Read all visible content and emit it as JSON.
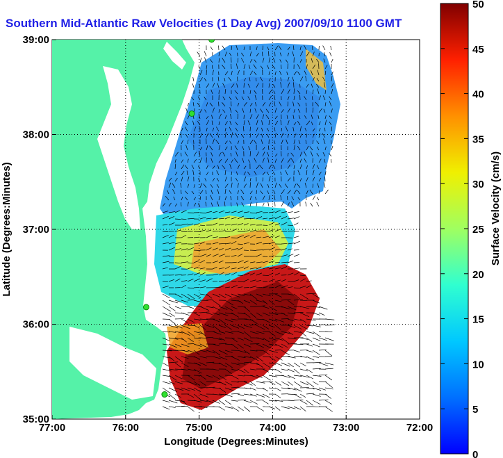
{
  "title": "Southern Mid-Atlantic Raw Velocities (1 Day Avg) 2007/09/10 1100 GMT",
  "map": {
    "x_label": "Longitude (Degrees:Minutes)",
    "y_label": "Latitude (Degrees:Minutes)",
    "x_ticks": [
      "77:00",
      "76:00",
      "75:00",
      "74:00",
      "73:00",
      "72:00"
    ],
    "y_ticks": [
      "39:00",
      "38:00",
      "37:00",
      "36:00",
      "35:00"
    ],
    "lon_range": [
      -77,
      -72
    ],
    "lat_range": [
      35,
      39
    ],
    "grid": true,
    "land_color": "#55f2a8",
    "ocean_color": "#ffffff"
  },
  "colorbar": {
    "label": "Surface Velocity (cm/s)",
    "ticks": [
      "50",
      "45",
      "40",
      "35",
      "30",
      "25",
      "20",
      "15",
      "10",
      "5",
      "0"
    ],
    "range": [
      0,
      50
    ],
    "colormap": "jet"
  },
  "chart_data": {
    "type": "heatmap",
    "title": "Southern Mid-Atlantic Raw Velocities (1 Day Avg) 2007/09/10 1100 GMT",
    "xlabel": "Longitude (Degrees:Minutes)",
    "ylabel": "Latitude (Degrees:Minutes)",
    "xlim": [
      -77,
      -72
    ],
    "ylim": [
      35,
      39
    ],
    "colorbar_label": "Surface Velocity (cm/s)",
    "colorbar_range": [
      0,
      50
    ],
    "regions": [
      {
        "area": "northern shelf",
        "speed_cm_s": 10
      },
      {
        "area": "central shelf",
        "speed_cm_s": 12
      },
      {
        "area": "near 36.6N 74.7W",
        "speed_cm_s": 26
      },
      {
        "area": "near 36.3N 74.2W",
        "speed_cm_s": 45
      },
      {
        "area": "near 35.6N 74.6W",
        "speed_cm_s": 50
      }
    ],
    "stations": [
      {
        "lon": -74.83,
        "lat": 39.0
      },
      {
        "lon": -75.1,
        "lat": 38.22
      },
      {
        "lon": -75.72,
        "lat": 36.18
      },
      {
        "lon": -75.47,
        "lat": 35.26
      }
    ]
  }
}
